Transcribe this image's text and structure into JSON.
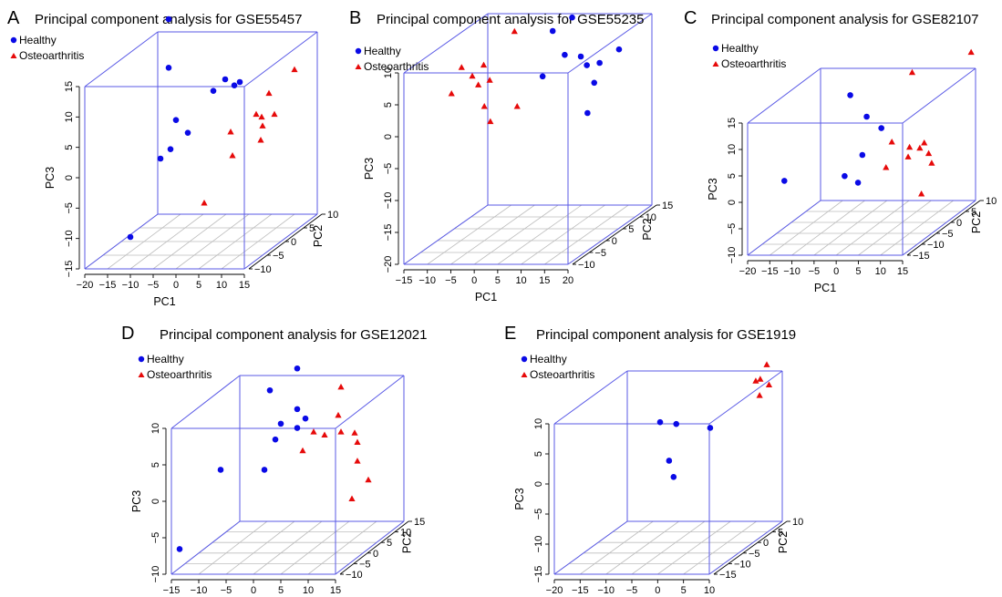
{
  "colors": {
    "healthy": "#0a0ae6",
    "osteoarthritis": "#e60a0a",
    "box": "#5a5ae6",
    "grid": "#bdbdbd"
  },
  "legend_labels": [
    "Healthy",
    "Osteoarthritis"
  ],
  "chart_data": [
    {
      "panel": "A",
      "type": "scatter",
      "title": "Principal component analysis for GSE55457",
      "xlabel": "PC1",
      "ylabel": "PC2",
      "zlabel": "PC3",
      "xticks": [
        -20,
        -15,
        -10,
        -5,
        0,
        5,
        10,
        15
      ],
      "yticks": [
        -10,
        -5,
        0,
        5,
        10
      ],
      "zticks": [
        -15,
        -10,
        -5,
        0,
        5,
        10,
        15
      ],
      "series": [
        {
          "name": "Healthy",
          "points": [
            [
              -16,
              8,
              10
            ],
            [
              -16,
              8,
              18
            ],
            [
              -14,
              -5,
              -12
            ],
            [
              -8,
              0,
              5
            ],
            [
              -7,
              2,
              2
            ],
            [
              -6,
              -4,
              2
            ],
            [
              -3,
              4,
              8
            ],
            [
              -2,
              6,
              9
            ],
            [
              0,
              6,
              8
            ],
            [
              2,
              5,
              9
            ],
            [
              -9,
              -3,
              0
            ]
          ]
        },
        {
          "name": "Osteoarthritis",
          "points": [
            [
              4,
              0,
              3
            ],
            [
              6,
              -2,
              0
            ],
            [
              8,
              2,
              5
            ],
            [
              10,
              3,
              8
            ],
            [
              10,
              1,
              5
            ],
            [
              11,
              0,
              4
            ],
            [
              12,
              2,
              5
            ],
            [
              13,
              -3,
              3
            ],
            [
              14,
              5,
              11
            ],
            [
              3,
              -6,
              -6
            ]
          ]
        }
      ]
    },
    {
      "panel": "B",
      "type": "scatter",
      "title": "Principal component analysis for GSE55235",
      "xlabel": "PC1",
      "ylabel": "PC2",
      "zlabel": "PC3",
      "xticks": [
        -15,
        -10,
        -5,
        0,
        5,
        10,
        15,
        20
      ],
      "yticks": [
        -10,
        -5,
        0,
        5,
        10,
        15
      ],
      "zticks": [
        -20,
        -15,
        -10,
        -5,
        0,
        5,
        10
      ],
      "series": [
        {
          "name": "Healthy",
          "points": [
            [
              6,
              5,
              11
            ],
            [
              8,
              8,
              12
            ],
            [
              10,
              3,
              8
            ],
            [
              12,
              5,
              7
            ],
            [
              6,
              2,
              5
            ],
            [
              14,
              4,
              6
            ],
            [
              16,
              5,
              6
            ],
            [
              17,
              2,
              4
            ],
            [
              18,
              8,
              7
            ],
            [
              17,
              0,
              0
            ]
          ]
        },
        {
          "name": "Osteoarthritis",
          "points": [
            [
              -12,
              0,
              3
            ],
            [
              -12,
              3,
              6
            ],
            [
              -9,
              2,
              5
            ],
            [
              -7,
              1,
              4
            ],
            [
              -8,
              4,
              6
            ],
            [
              -5,
              0,
              1
            ],
            [
              -3,
              -1,
              -1
            ],
            [
              0,
              2,
              12
            ],
            [
              2,
              0,
              1
            ],
            [
              -6,
              3,
              4
            ]
          ]
        }
      ]
    },
    {
      "panel": "C",
      "type": "scatter",
      "title": "Principal component analysis for GSE82107",
      "xlabel": "PC1",
      "ylabel": "PC2",
      "zlabel": "PC3",
      "xticks": [
        -20,
        -15,
        -10,
        -5,
        0,
        5,
        10,
        15
      ],
      "yticks": [
        -15,
        -10,
        -5,
        0,
        5,
        10
      ],
      "zticks": [
        -10,
        -5,
        0,
        5,
        10,
        15
      ],
      "series": [
        {
          "name": "Healthy",
          "points": [
            [
              -15,
              -10,
              2
            ],
            [
              -10,
              5,
              12
            ],
            [
              -6,
              -3,
              0
            ],
            [
              -3,
              0,
              10
            ],
            [
              -2,
              -3,
              4
            ],
            [
              -1,
              2,
              7
            ],
            [
              -1,
              -6,
              0
            ]
          ]
        },
        {
          "name": "Osteoarthritis",
          "points": [
            [
              2,
              8,
              15
            ],
            [
              4,
              -2,
              6
            ],
            [
              4,
              -4,
              2
            ],
            [
              8,
              -2,
              5
            ],
            [
              9,
              -4,
              4
            ],
            [
              10,
              0,
              5
            ],
            [
              11,
              0,
              3
            ],
            [
              12,
              -4,
              -3
            ],
            [
              13,
              -2,
              2
            ],
            [
              14,
              10,
              18
            ],
            [
              9,
              0,
              4
            ]
          ]
        }
      ]
    },
    {
      "panel": "D",
      "type": "scatter",
      "title": "Principal component analysis for GSE12021",
      "xlabel": "PC1",
      "ylabel": "PC2",
      "zlabel": "PC3",
      "xticks": [
        -15,
        -10,
        -5,
        0,
        5,
        10,
        15
      ],
      "yticks": [
        -10,
        -5,
        0,
        5,
        10,
        15
      ],
      "zticks": [
        -10,
        -5,
        0,
        5,
        10
      ],
      "series": [
        {
          "name": "Healthy",
          "points": [
            [
              -16,
              -5,
              -8
            ],
            [
              -10,
              -2,
              2
            ],
            [
              -6,
              8,
              10
            ],
            [
              -3,
              6,
              6
            ],
            [
              -2,
              2,
              5
            ],
            [
              -1,
              8,
              13
            ],
            [
              0,
              6,
              8
            ],
            [
              1,
              4,
              6
            ],
            [
              2,
              5,
              7
            ],
            [
              -2,
              -2,
              2
            ]
          ]
        },
        {
          "name": "Osteoarthritis",
          "points": [
            [
              6,
              4,
              5
            ],
            [
              8,
              6,
              11
            ],
            [
              9,
              3,
              8
            ],
            [
              10,
              2,
              6
            ],
            [
              11,
              5,
              5
            ],
            [
              12,
              4,
              4
            ],
            [
              13,
              2,
              2
            ],
            [
              14,
              -2,
              -2
            ],
            [
              16,
              0,
              0
            ],
            [
              4,
              0,
              4
            ],
            [
              5,
              2,
              6
            ]
          ]
        }
      ]
    },
    {
      "panel": "E",
      "type": "scatter",
      "title": "Principal component analysis for GSE1919",
      "xlabel": "PC1",
      "ylabel": "PC2",
      "zlabel": "PC3",
      "xticks": [
        -20,
        -15,
        -10,
        -5,
        0,
        5,
        10
      ],
      "yticks": [
        -15,
        -10,
        -5,
        0,
        5,
        10
      ],
      "zticks": [
        -15,
        -10,
        -5,
        0,
        5,
        10
      ],
      "series": [
        {
          "name": "Healthy",
          "points": [
            [
              -8,
              0,
              5
            ],
            [
              -6,
              2,
              4
            ],
            [
              -4,
              -4,
              0
            ],
            [
              -2,
              -6,
              -2
            ],
            [
              0,
              3,
              3
            ]
          ]
        },
        {
          "name": "Osteoarthritis",
          "points": [
            [
              6,
              8,
              9
            ],
            [
              7,
              10,
              11
            ],
            [
              8,
              6,
              10
            ],
            [
              9,
              4,
              8
            ],
            [
              8,
              9,
              8
            ]
          ]
        }
      ]
    }
  ]
}
